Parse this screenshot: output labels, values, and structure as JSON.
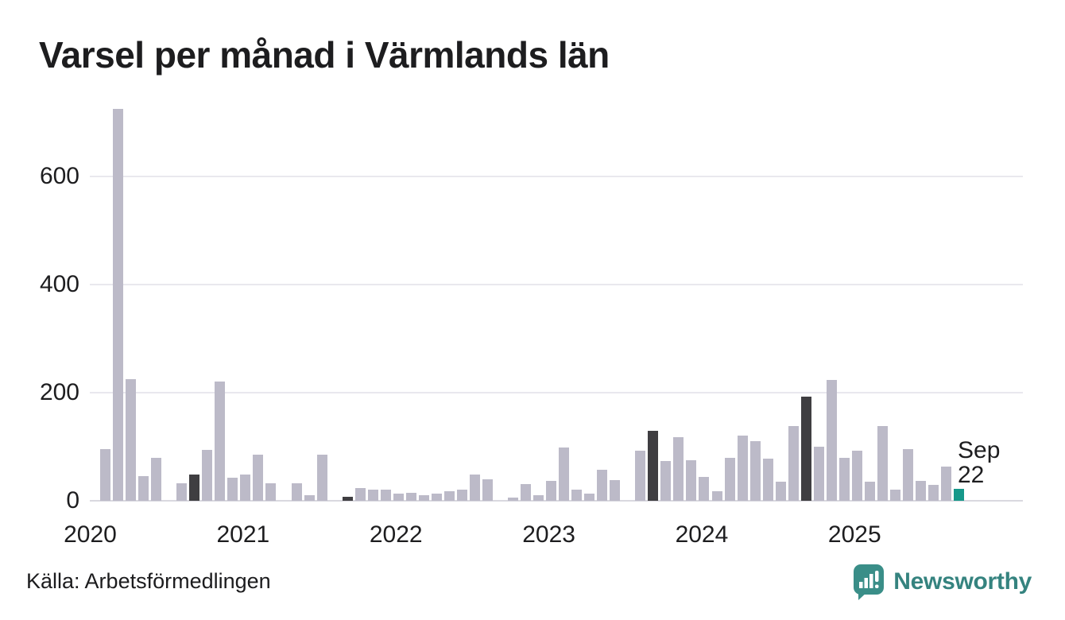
{
  "title": "Varsel per månad i Värmlands län",
  "source": "Källa: Arbetsförmedlingen",
  "annotation": {
    "label": "Sep\n22",
    "month": "Sep",
    "value": "22"
  },
  "branding": {
    "logo_text": "Newsworthy"
  },
  "colors": {
    "bar_default": "#bcbac8",
    "bar_september_highlight": "#3f3e41",
    "bar_latest": "#16988a",
    "gridline": "#e9e8ee",
    "axis": "#d9d8df",
    "text": "#1d1d1f",
    "brand_teal": "#35837f",
    "brand_icon": "#3a8e88"
  },
  "chart_data": {
    "type": "bar",
    "title": "Varsel per månad i Värmlands län",
    "xlabel": "",
    "ylabel": "",
    "y_ticks": [
      0,
      200,
      400,
      600
    ],
    "ylim": [
      0,
      740
    ],
    "grid": "horizontal",
    "legend": "none",
    "x_tick_labels": [
      "2020",
      "2021",
      "2022",
      "2023",
      "2024",
      "2025"
    ],
    "highlight_note": "September bars shown dark; latest month (Sep 2025) shown teal with label 'Sep 22'",
    "series": [
      {
        "name": "Varsel per månad",
        "points": [
          {
            "m": "2020-01",
            "v": 0,
            "role": "normal"
          },
          {
            "m": "2020-02",
            "v": 95,
            "role": "normal"
          },
          {
            "m": "2020-03",
            "v": 725,
            "role": "normal"
          },
          {
            "m": "2020-04",
            "v": 225,
            "role": "normal"
          },
          {
            "m": "2020-05",
            "v": 45,
            "role": "normal"
          },
          {
            "m": "2020-06",
            "v": 80,
            "role": "normal"
          },
          {
            "m": "2020-07",
            "v": 0,
            "role": "normal"
          },
          {
            "m": "2020-08",
            "v": 32,
            "role": "normal"
          },
          {
            "m": "2020-09",
            "v": 49,
            "role": "sep"
          },
          {
            "m": "2020-10",
            "v": 94,
            "role": "normal"
          },
          {
            "m": "2020-11",
            "v": 220,
            "role": "normal"
          },
          {
            "m": "2020-12",
            "v": 42,
            "role": "normal"
          },
          {
            "m": "2021-01",
            "v": 48,
            "role": "normal"
          },
          {
            "m": "2021-02",
            "v": 86,
            "role": "normal"
          },
          {
            "m": "2021-03",
            "v": 32,
            "role": "normal"
          },
          {
            "m": "2021-04",
            "v": 0,
            "role": "normal"
          },
          {
            "m": "2021-05",
            "v": 32,
            "role": "normal"
          },
          {
            "m": "2021-06",
            "v": 10,
            "role": "normal"
          },
          {
            "m": "2021-07",
            "v": 86,
            "role": "normal"
          },
          {
            "m": "2021-08",
            "v": 0,
            "role": "normal"
          },
          {
            "m": "2021-09",
            "v": 8,
            "role": "sep"
          },
          {
            "m": "2021-10",
            "v": 24,
            "role": "normal"
          },
          {
            "m": "2021-11",
            "v": 20,
            "role": "normal"
          },
          {
            "m": "2021-12",
            "v": 21,
            "role": "normal"
          },
          {
            "m": "2022-01",
            "v": 13,
            "role": "normal"
          },
          {
            "m": "2022-02",
            "v": 15,
            "role": "normal"
          },
          {
            "m": "2022-03",
            "v": 11,
            "role": "normal"
          },
          {
            "m": "2022-04",
            "v": 13,
            "role": "normal"
          },
          {
            "m": "2022-05",
            "v": 17,
            "role": "normal"
          },
          {
            "m": "2022-06",
            "v": 20,
            "role": "normal"
          },
          {
            "m": "2022-07",
            "v": 49,
            "role": "normal"
          },
          {
            "m": "2022-08",
            "v": 40,
            "role": "normal"
          },
          {
            "m": "2022-09",
            "v": 0,
            "role": "sep"
          },
          {
            "m": "2022-10",
            "v": 6,
            "role": "normal"
          },
          {
            "m": "2022-11",
            "v": 31,
            "role": "normal"
          },
          {
            "m": "2022-12",
            "v": 11,
            "role": "normal"
          },
          {
            "m": "2023-01",
            "v": 37,
            "role": "normal"
          },
          {
            "m": "2023-02",
            "v": 98,
            "role": "normal"
          },
          {
            "m": "2023-03",
            "v": 21,
            "role": "normal"
          },
          {
            "m": "2023-04",
            "v": 14,
            "role": "normal"
          },
          {
            "m": "2023-05",
            "v": 57,
            "role": "normal"
          },
          {
            "m": "2023-06",
            "v": 39,
            "role": "normal"
          },
          {
            "m": "2023-07",
            "v": 0,
            "role": "normal"
          },
          {
            "m": "2023-08",
            "v": 93,
            "role": "normal"
          },
          {
            "m": "2023-09",
            "v": 130,
            "role": "sep"
          },
          {
            "m": "2023-10",
            "v": 73,
            "role": "normal"
          },
          {
            "m": "2023-11",
            "v": 117,
            "role": "normal"
          },
          {
            "m": "2023-12",
            "v": 75,
            "role": "normal"
          },
          {
            "m": "2024-01",
            "v": 44,
            "role": "normal"
          },
          {
            "m": "2024-02",
            "v": 17,
            "role": "normal"
          },
          {
            "m": "2024-03",
            "v": 79,
            "role": "normal"
          },
          {
            "m": "2024-04",
            "v": 120,
            "role": "normal"
          },
          {
            "m": "2024-05",
            "v": 110,
            "role": "normal"
          },
          {
            "m": "2024-06",
            "v": 78,
            "role": "normal"
          },
          {
            "m": "2024-07",
            "v": 36,
            "role": "normal"
          },
          {
            "m": "2024-08",
            "v": 139,
            "role": "normal"
          },
          {
            "m": "2024-09",
            "v": 193,
            "role": "sep"
          },
          {
            "m": "2024-10",
            "v": 100,
            "role": "normal"
          },
          {
            "m": "2024-11",
            "v": 224,
            "role": "normal"
          },
          {
            "m": "2024-12",
            "v": 79,
            "role": "normal"
          },
          {
            "m": "2025-01",
            "v": 93,
            "role": "normal"
          },
          {
            "m": "2025-02",
            "v": 35,
            "role": "normal"
          },
          {
            "m": "2025-03",
            "v": 139,
            "role": "normal"
          },
          {
            "m": "2025-04",
            "v": 21,
            "role": "normal"
          },
          {
            "m": "2025-05",
            "v": 95,
            "role": "normal"
          },
          {
            "m": "2025-06",
            "v": 37,
            "role": "normal"
          },
          {
            "m": "2025-07",
            "v": 29,
            "role": "normal"
          },
          {
            "m": "2025-08",
            "v": 64,
            "role": "latest_label_month"
          },
          {
            "m": "2025-09",
            "v": 22,
            "role": "latest"
          }
        ]
      }
    ]
  }
}
